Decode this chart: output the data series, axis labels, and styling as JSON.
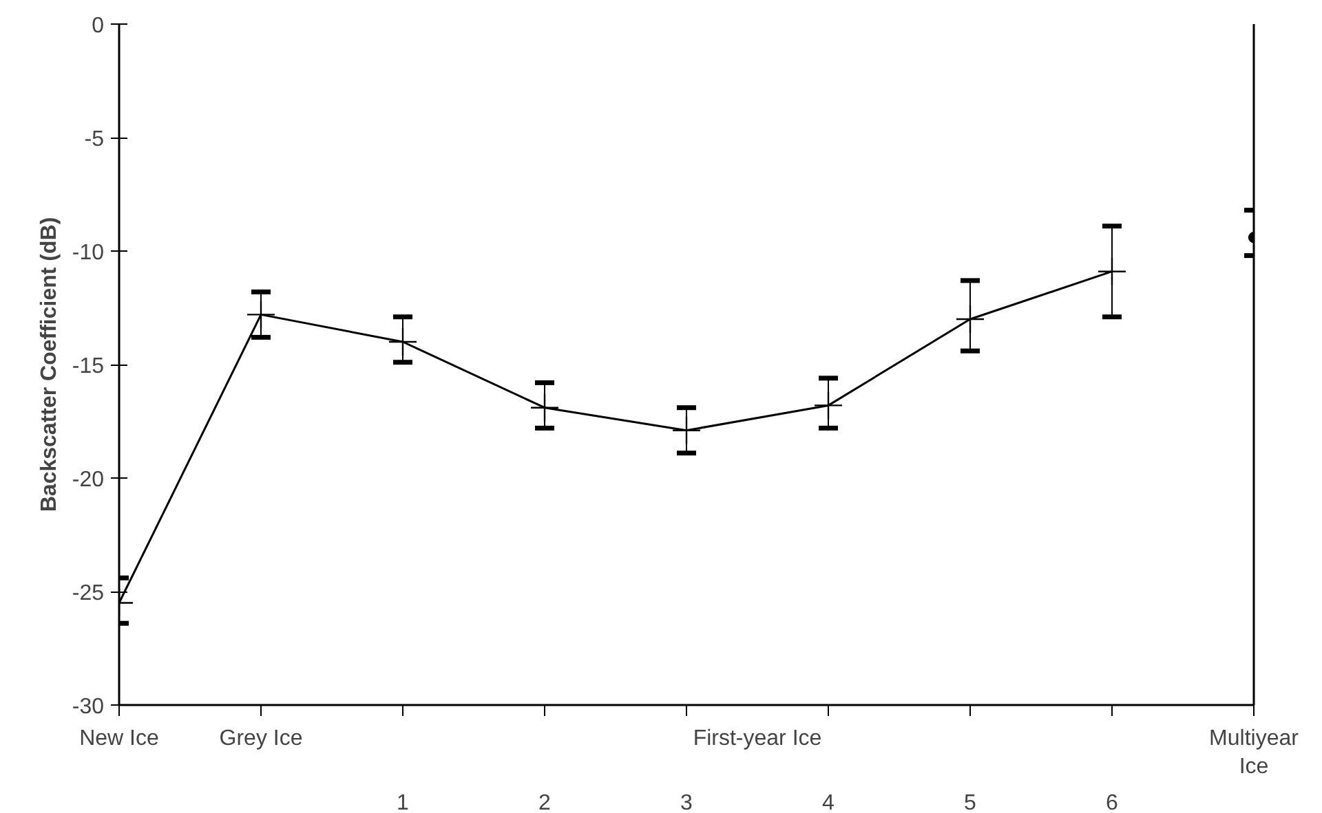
{
  "chart_data": {
    "type": "line",
    "ylabel": "Backscatter Coefficient (dB)",
    "categories": [
      "New Ice",
      "Grey Ice",
      "1",
      "2",
      "3",
      "4",
      "5",
      "6",
      "Multiyear Ice"
    ],
    "ylim": [
      -30,
      0
    ],
    "yticks": [
      -30,
      -25,
      -20,
      -15,
      -10,
      -5,
      0
    ],
    "annotations": [
      "First-year Ice"
    ],
    "grid": false,
    "series": [
      {
        "color": "#000000",
        "marker": "cross",
        "values": [
          -25.5,
          -12.8,
          -14,
          -16.9,
          -17.9,
          -16.8,
          -13,
          -10.9,
          null
        ],
        "errors": [
          [
            -26.4,
            -24.4
          ],
          [
            -13.8,
            -11.8
          ],
          [
            -14.9,
            -12.9
          ],
          [
            -17.8,
            -15.8
          ],
          [
            -18.9,
            -16.9
          ],
          [
            -17.8,
            -15.6
          ],
          [
            -14.4,
            -11.3
          ],
          [
            -12.9,
            -8.9
          ],
          null
        ]
      },
      {
        "type": "scatter",
        "color": "#000000",
        "marker": "circle",
        "values": [
          null,
          null,
          null,
          null,
          null,
          null,
          null,
          null,
          -9.4
        ],
        "errors": [
          null,
          null,
          null,
          null,
          null,
          null,
          null,
          null,
          [
            -10.2,
            -8.2
          ]
        ]
      }
    ]
  }
}
